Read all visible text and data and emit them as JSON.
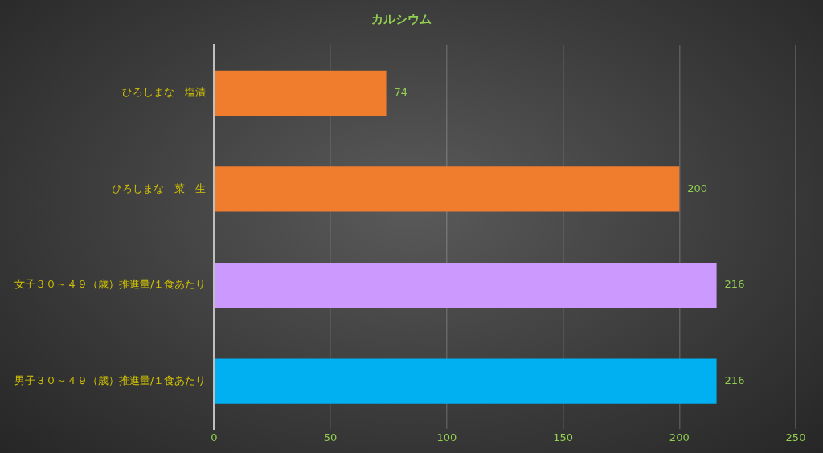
{
  "chart_data": {
    "type": "bar",
    "orientation": "horizontal",
    "title": "カルシウム",
    "categories": [
      "ひろしまな　塩漬",
      "ひろしまな　菜　生",
      "女子３０～４９（歳）推進量/１食あたり",
      "男子３０～４９（歳）推進量/１食あたり"
    ],
    "values": [
      74,
      200,
      216,
      216
    ],
    "colors": [
      "#f07d2e",
      "#f07d2e",
      "#cc99ff",
      "#00b0f0"
    ],
    "data_labels": true,
    "xlim": [
      0,
      250
    ],
    "xticks": [
      0,
      50,
      100,
      150,
      200,
      250
    ],
    "grid": "x",
    "legend": false
  }
}
